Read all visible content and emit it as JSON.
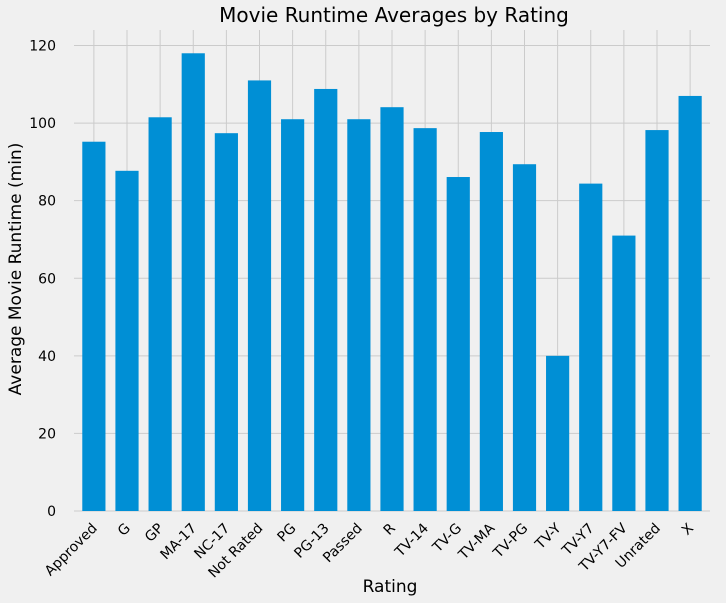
{
  "chart_data": {
    "type": "bar",
    "title": "Movie Runtime Averages by Rating",
    "xlabel": "Rating",
    "ylabel": "Average Movie Runtime (min)",
    "ylim": [
      0,
      124
    ],
    "yticks": [
      0,
      20,
      40,
      60,
      80,
      100,
      120
    ],
    "grid": true,
    "bar_color": "#008fd5",
    "background": "#f0f0f0",
    "grid_color": "#cbcbcb",
    "categories": [
      "Approved",
      "G",
      "GP",
      "MA-17",
      "NC-17",
      "Not Rated",
      "PG",
      "PG-13",
      "Passed",
      "R",
      "TV-14",
      "TV-G",
      "TV-MA",
      "TV-PG",
      "TV-Y",
      "TV-Y7",
      "TV-Y7-FV",
      "Unrated",
      "X"
    ],
    "values": [
      95.2,
      87.7,
      101.5,
      118.0,
      97.4,
      111.0,
      101.0,
      108.8,
      101.0,
      104.1,
      98.7,
      86.1,
      97.7,
      89.4,
      40.0,
      84.4,
      71.0,
      98.2,
      107.0
    ]
  }
}
